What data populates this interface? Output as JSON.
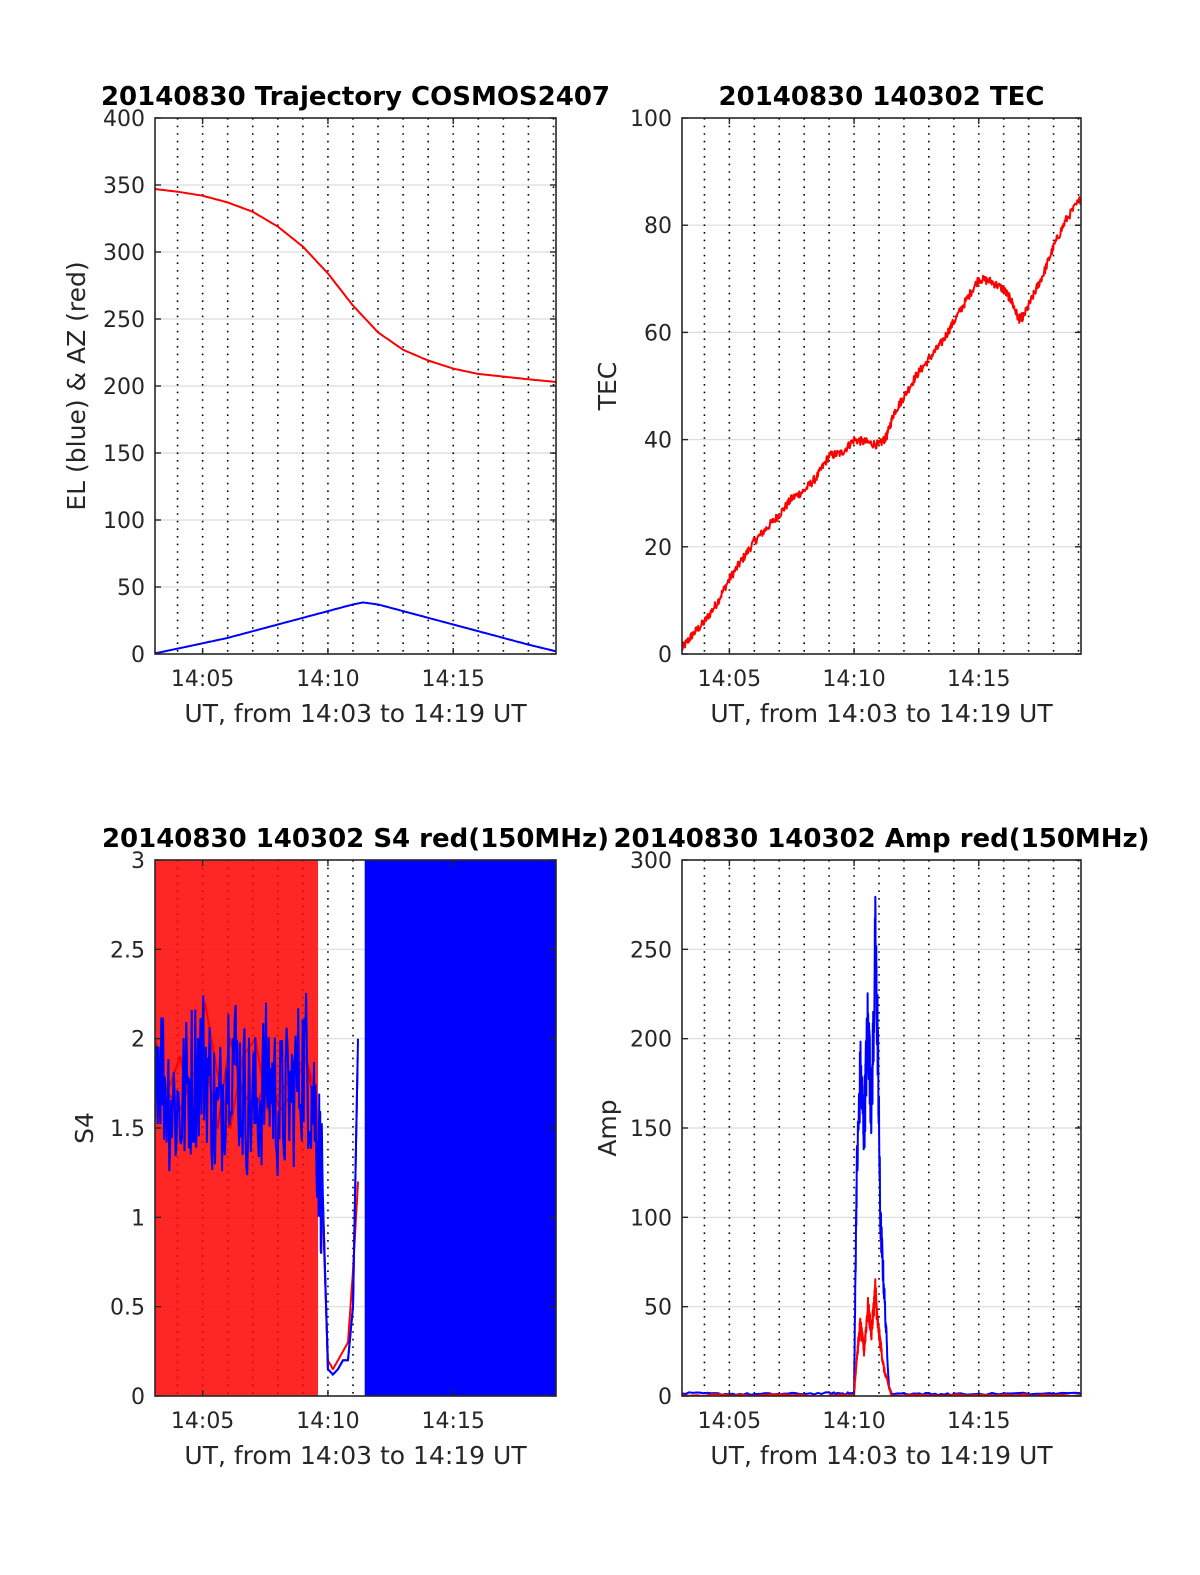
{
  "chart_data": [
    {
      "type": "line",
      "title": "20140830 Trajectory COSMOS2407",
      "xlabel": "UT, from 14:03 to 14:19 UT",
      "ylabel": "EL (blue) & AZ (red)",
      "xlim": [
        3.1,
        19.1
      ],
      "ylim": [
        0,
        400
      ],
      "xticks": [
        5,
        10,
        15
      ],
      "xtick_labels": [
        "14:05",
        "14:10",
        "14:15"
      ],
      "yticks": [
        0,
        50,
        100,
        150,
        200,
        250,
        300,
        350,
        400
      ],
      "ytick_labels": [
        "0",
        "50",
        "100",
        "150",
        "200",
        "250",
        "300",
        "350",
        "400"
      ],
      "grid": true,
      "series": [
        {
          "color": "#ff0000",
          "x": [
            3.1,
            4.0,
            5.0,
            6.0,
            7.0,
            8.0,
            9.0,
            10.0,
            11.0,
            12.0,
            13.0,
            14.0,
            15.0,
            16.0,
            17.0,
            18.0,
            19.1
          ],
          "y": [
            347,
            345,
            342,
            337,
            330,
            319,
            304,
            284,
            260,
            240,
            227,
            219,
            213,
            209,
            207,
            205,
            203
          ]
        },
        {
          "color": "#0000ff",
          "x": [
            3.1,
            4.0,
            5.0,
            6.0,
            7.0,
            8.0,
            9.0,
            10.0,
            11.0,
            11.4,
            12.0,
            13.0,
            14.0,
            15.0,
            16.0,
            17.0,
            18.0,
            19.1
          ],
          "y": [
            0.5,
            4,
            8,
            12,
            17,
            22,
            27,
            32,
            37,
            38.5,
            37,
            32,
            27,
            22,
            17,
            12,
            7,
            2
          ]
        }
      ]
    },
    {
      "type": "line",
      "title": "20140830 140302 TEC",
      "xlabel": "UT, from 14:03 to 14:19 UT",
      "ylabel": "TEC",
      "xlim": [
        3.1,
        19.1
      ],
      "ylim": [
        0,
        100
      ],
      "xticks": [
        5,
        10,
        15
      ],
      "xtick_labels": [
        "14:05",
        "14:10",
        "14:15"
      ],
      "yticks": [
        0,
        20,
        40,
        60,
        80,
        100
      ],
      "ytick_labels": [
        "0",
        "20",
        "40",
        "60",
        "80",
        "100"
      ],
      "grid": true,
      "series": [
        {
          "color": "#ff0000",
          "x": [
            3.1,
            3.5,
            4.0,
            4.5,
            5.0,
            5.5,
            6.0,
            6.5,
            7.0,
            7.5,
            8.0,
            8.5,
            9.0,
            9.5,
            10.0,
            10.5,
            11.0,
            11.3,
            11.6,
            12.0,
            12.5,
            13.0,
            13.5,
            14.0,
            14.5,
            15.0,
            15.5,
            16.0,
            16.3,
            16.6,
            16.8,
            17.2,
            17.6,
            18.0,
            18.5,
            19.1
          ],
          "y": [
            1,
            3.5,
            6,
            9.5,
            14,
            17.5,
            21,
            23.5,
            26,
            29,
            30.5,
            33,
            37,
            37.5,
            40,
            39.5,
            39,
            40.5,
            45,
            48,
            52,
            55,
            58,
            62,
            66,
            70,
            69.5,
            68,
            66,
            62.5,
            63,
            67,
            71,
            76,
            81,
            85
          ]
        }
      ]
    },
    {
      "type": "line",
      "title": "20140830 140302 S4 red(150MHz)",
      "xlabel": "UT, from 14:03 to 14:19 UT",
      "ylabel": "S4",
      "xlim": [
        3.1,
        19.1
      ],
      "ylim": [
        0,
        3
      ],
      "xticks": [
        5,
        10,
        15
      ],
      "xtick_labels": [
        "14:05",
        "14:10",
        "14:15"
      ],
      "yticks": [
        0,
        0.5,
        1,
        1.5,
        2,
        2.5,
        3
      ],
      "ytick_labels": [
        "0",
        "0.5",
        "1",
        "1.5",
        "2",
        "2.5",
        "3"
      ],
      "grid": true,
      "series": [
        {
          "color": "#ff0000",
          "x": [
            3.1,
            3.6,
            4.1,
            4.6,
            5.1,
            5.6,
            6.1,
            6.6,
            7.1,
            7.6,
            8.1,
            8.6,
            9.1,
            9.5,
            9.8,
            10.0,
            10.2,
            10.4,
            10.6,
            10.8,
            11.0,
            11.2
          ],
          "y": [
            1.8,
            1.7,
            1.9,
            1.6,
            2.2,
            1.8,
            1.5,
            1.9,
            2.0,
            1.6,
            1.7,
            1.8,
            1.9,
            1.7,
            1.0,
            0.2,
            0.15,
            0.2,
            0.25,
            0.3,
            0.7,
            1.2
          ]
        },
        {
          "color": "#0000ff",
          "x": [
            3.1,
            3.6,
            4.1,
            4.6,
            5.1,
            5.6,
            6.1,
            6.6,
            7.1,
            7.6,
            8.1,
            8.6,
            9.1,
            9.5,
            9.8,
            10.0,
            10.2,
            10.4,
            10.6,
            10.8,
            11.0,
            11.2
          ],
          "y": [
            2.0,
            1.7,
            1.6,
            1.8,
            1.9,
            1.5,
            2.0,
            1.7,
            1.6,
            1.8,
            1.6,
            1.7,
            1.9,
            1.6,
            1.1,
            0.15,
            0.12,
            0.15,
            0.2,
            0.2,
            0.5,
            2.0
          ]
        }
      ]
    },
    {
      "type": "line",
      "title": "20140830 140302 Amp red(150MHz)",
      "xlabel": "UT, from 14:03 to 14:19 UT",
      "ylabel": "Amp",
      "xlim": [
        3.1,
        19.1
      ],
      "ylim": [
        0,
        300
      ],
      "xticks": [
        5,
        10,
        15
      ],
      "xtick_labels": [
        "14:05",
        "14:10",
        "14:15"
      ],
      "yticks": [
        0,
        50,
        100,
        150,
        200,
        250,
        300
      ],
      "ytick_labels": [
        "0",
        "50",
        "100",
        "150",
        "200",
        "250",
        "300"
      ],
      "grid": true,
      "series": [
        {
          "color": "#0000ff",
          "x": [
            3.1,
            6.0,
            9.0,
            10.0,
            10.1,
            10.25,
            10.4,
            10.55,
            10.7,
            10.85,
            10.95,
            11.05,
            11.2,
            11.4,
            11.5,
            14.0,
            19.1
          ],
          "y": [
            1.5,
            1.0,
            1.5,
            1.5,
            120,
            180,
            150,
            210,
            160,
            250,
            200,
            100,
            60,
            5,
            1.5,
            1.0,
            1.5
          ]
        },
        {
          "color": "#ff0000",
          "x": [
            3.1,
            9.0,
            10.0,
            10.1,
            10.25,
            10.4,
            10.55,
            10.7,
            10.85,
            10.95,
            11.05,
            11.2,
            11.4,
            11.5,
            19.1
          ],
          "y": [
            0.5,
            0.5,
            0.5,
            20,
            40,
            25,
            50,
            35,
            60,
            40,
            30,
            15,
            5,
            0.5,
            0.5
          ]
        }
      ]
    }
  ]
}
